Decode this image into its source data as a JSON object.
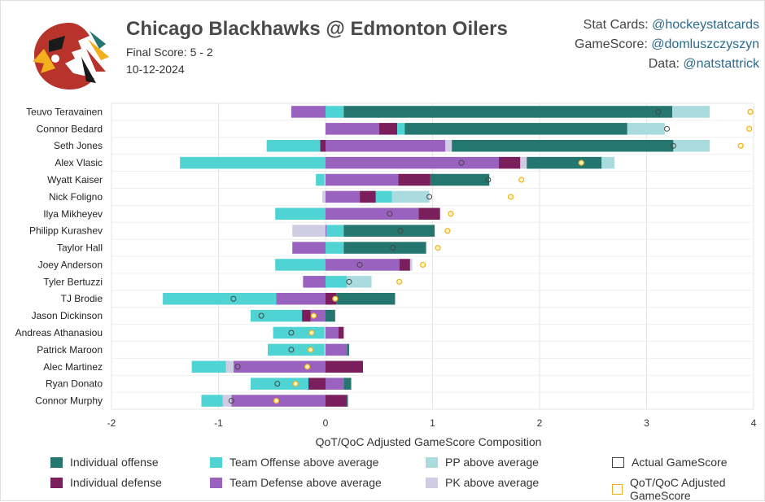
{
  "header": {
    "title": "Chicago Blackhawks @ Edmonton Oilers",
    "final_score": "Final Score: 5 - 2",
    "date": "10-12-2024",
    "credits": [
      {
        "label": "Stat Cards: ",
        "handle": "@hockeystatcards"
      },
      {
        "label": "GameScore: ",
        "handle": "@domluszczyszyn"
      },
      {
        "label": "Data: ",
        "handle": "@natstattrick"
      }
    ]
  },
  "logo": {
    "icon": "blackhawks-logo"
  },
  "colors": {
    "ind_off": "#267670",
    "team_off": "#4fd3d3",
    "pp": "#aadbdf",
    "ind_def": "#7a1f5b",
    "team_def": "#9a62bf",
    "pk": "#cfcde3",
    "actual_marker": "#444444",
    "adjusted_marker": "#f2b01e"
  },
  "chart_data": {
    "type": "bar",
    "orientation": "horizontal",
    "stacked": true,
    "xlabel": "QoT/QoC Adjusted GameScore Composition",
    "xlim": [
      -2,
      4
    ],
    "xticks": [
      -2,
      -1,
      0,
      1,
      2,
      3,
      4
    ],
    "grid": true,
    "players": [
      {
        "name": "Teuvo Teravainen",
        "ind_off": 3.07,
        "team_off": 0.17,
        "pp": 0.35,
        "ind_def": 0,
        "team_def": -0.32,
        "pk": 0,
        "actual": 3.11,
        "adjusted": 3.97
      },
      {
        "name": "Connor Bedard",
        "ind_off": 2.08,
        "team_off": 0.07,
        "pp": 0.35,
        "ind_def": 0.17,
        "team_def": 0.5,
        "pk": 0,
        "actual": 3.19,
        "adjusted": 3.96
      },
      {
        "name": "Seth Jones",
        "ind_off": 2.07,
        "team_off": -0.5,
        "pp": 0.34,
        "ind_def": -0.05,
        "team_def": 1.12,
        "pk": 0.06,
        "actual": 3.25,
        "adjusted": 3.88
      },
      {
        "name": "Alex Vlasic",
        "ind_off": 0.7,
        "team_off": -1.36,
        "pp": 0.12,
        "ind_def": 0.2,
        "team_def": 1.62,
        "pk": 0.06,
        "actual": 1.27,
        "adjusted": 2.39
      },
      {
        "name": "Wyatt Kaiser",
        "ind_off": 0.55,
        "team_off": -0.08,
        "pp": 0,
        "ind_def": 0.3,
        "team_def": 0.68,
        "pk": -0.01,
        "actual": 1.52,
        "adjusted": 1.83
      },
      {
        "name": "Nick Foligno",
        "ind_off": 0,
        "team_off": 0.15,
        "pp": 0.35,
        "ind_def": 0.15,
        "team_def": 0.32,
        "pk": -0.03,
        "actual": 0.97,
        "adjusted": 1.73
      },
      {
        "name": "Ilya Mikheyev",
        "ind_off": 0,
        "team_off": -0.47,
        "pp": 0,
        "ind_def": 0.2,
        "team_def": 0.87,
        "pk": 0,
        "actual": 0.6,
        "adjusted": 1.17
      },
      {
        "name": "Philipp Kurashev",
        "ind_off": 0.85,
        "team_off": 0.16,
        "pp": 0,
        "ind_def": 0,
        "team_def": 0.01,
        "pk": -0.31,
        "actual": 0.7,
        "adjusted": 1.14
      },
      {
        "name": "Taylor Hall",
        "ind_off": 0.77,
        "team_off": 0.17,
        "pp": 0,
        "ind_def": 0,
        "team_def": -0.31,
        "pk": 0,
        "actual": 0.63,
        "adjusted": 1.05
      },
      {
        "name": "Joey Anderson",
        "ind_off": 0,
        "team_off": -0.47,
        "pp": 0,
        "ind_def": 0.1,
        "team_def": 0.69,
        "pk": 0.02,
        "actual": 0.32,
        "adjusted": 0.91
      },
      {
        "name": "Tyler Bertuzzi",
        "ind_off": 0,
        "team_off": 0.2,
        "pp": 0.23,
        "ind_def": 0,
        "team_def": -0.21,
        "pk": 0,
        "actual": 0.22,
        "adjusted": 0.69
      },
      {
        "name": "TJ Brodie",
        "ind_off": 0.55,
        "team_off": -1.06,
        "pp": 0,
        "ind_def": 0.1,
        "team_def": -0.46,
        "pk": 0,
        "actual": -0.86,
        "adjusted": 0.09
      },
      {
        "name": "Jason Dickinson",
        "ind_off": 0.09,
        "team_off": -0.48,
        "pp": 0,
        "ind_def": -0.08,
        "team_def": -0.14,
        "pk": 0,
        "actual": -0.6,
        "adjusted": -0.11
      },
      {
        "name": "Andreas Athanasiou",
        "ind_off": 0,
        "team_off": -0.48,
        "pp": 0,
        "ind_def": 0.05,
        "team_def": 0.12,
        "pk": -0.01,
        "actual": -0.32,
        "adjusted": -0.13
      },
      {
        "name": "Patrick Maroon",
        "ind_off": 0.02,
        "team_off": -0.53,
        "pp": 0,
        "ind_def": 0,
        "team_def": 0.2,
        "pk": -0.01,
        "actual": -0.32,
        "adjusted": -0.14
      },
      {
        "name": "Alec Martinez",
        "ind_off": 0,
        "team_off": -0.32,
        "pp": 0,
        "ind_def": 0.35,
        "team_def": -0.86,
        "pk": -0.07,
        "actual": -0.82,
        "adjusted": -0.17
      },
      {
        "name": "Ryan Donato",
        "ind_off": 0.07,
        "team_off": -0.54,
        "pp": 0,
        "ind_def": -0.16,
        "team_def": 0.17,
        "pk": 0,
        "actual": -0.45,
        "adjusted": -0.28
      },
      {
        "name": "Connor Murphy",
        "ind_off": 0.01,
        "team_off": -0.2,
        "pp": 0,
        "ind_def": 0.2,
        "team_def": -0.88,
        "pk": -0.08,
        "actual": -0.88,
        "adjusted": -0.46
      }
    ],
    "legend": [
      {
        "key": "ind_off",
        "label": "Individual offense"
      },
      {
        "key": "team_off",
        "label": "Team Offense above average"
      },
      {
        "key": "pp",
        "label": "PP above average"
      },
      {
        "key": "actual",
        "label": "Actual GameScore"
      },
      {
        "key": "ind_def",
        "label": "Individual defense"
      },
      {
        "key": "team_def",
        "label": "Team Defense above average"
      },
      {
        "key": "pk",
        "label": "PK above average"
      },
      {
        "key": "adjusted",
        "label": "QoT/QoC Adjusted GameScore"
      }
    ]
  }
}
